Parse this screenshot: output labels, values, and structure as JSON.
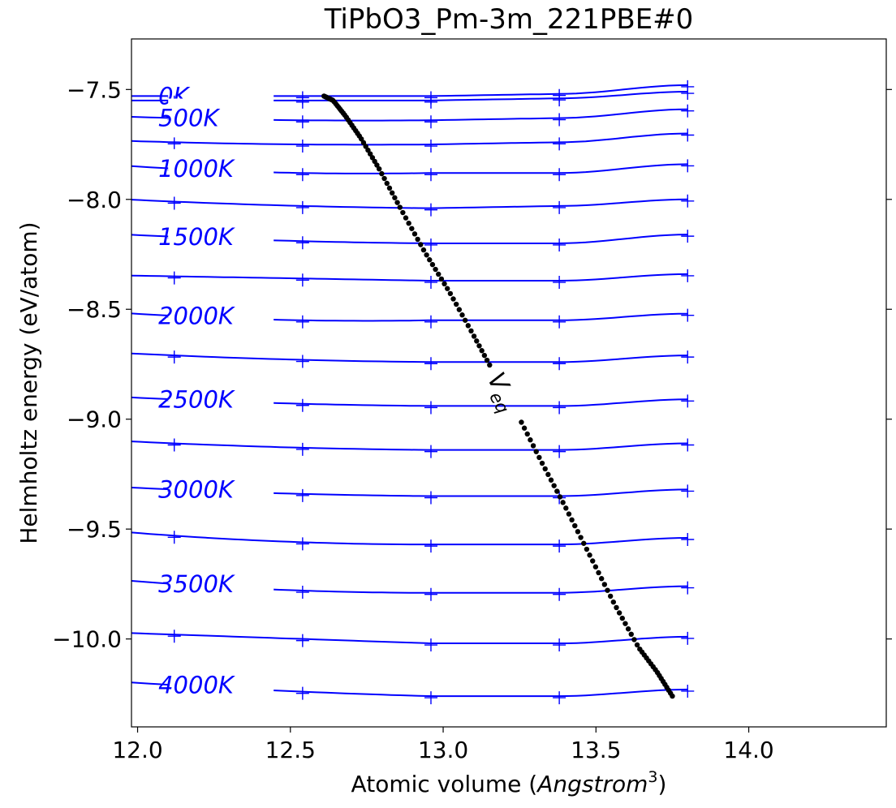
{
  "chart_data": {
    "type": "line",
    "title": "TiPbO3_Pm-3m_221PBE#0",
    "xlabel_main": "Atomic volume (",
    "xlabel_italic": "Angstrom",
    "xlabel_sup": "3",
    "xlabel_close": ")",
    "ylabel": "Helmholtz energy (eV/atom)",
    "xlim": [
      11.98,
      14.45
    ],
    "ylim": [
      -10.4,
      -7.27
    ],
    "xticks": [
      12.0,
      12.5,
      13.0,
      13.5,
      14.0
    ],
    "xtick_labels": [
      "12.0",
      "12.5",
      "13.0",
      "13.5",
      "14.0"
    ],
    "yticks": [
      -7.5,
      -8.0,
      -8.5,
      -9.0,
      -9.5,
      -10.0
    ],
    "ytick_labels": [
      "−7.5",
      "−8.0",
      "−8.5",
      "−9.0",
      "−9.5",
      "−10.0"
    ],
    "grid": false,
    "curve_color": "#0000ff",
    "veq_color": "#000000",
    "veq_label_main": "V",
    "veq_label_sub": "eq",
    "sample_volumes": [
      12.12,
      12.54,
      12.96,
      13.38,
      13.8
    ],
    "series": [
      {
        "T": 0,
        "label": "0K",
        "points": [
          -7.53,
          -7.53,
          -7.53,
          -7.52,
          -7.48
        ]
      },
      {
        "T": 250,
        "label": "",
        "points": [
          -7.55,
          -7.55,
          -7.55,
          -7.54,
          -7.51
        ]
      },
      {
        "T": 500,
        "label": "500K",
        "points": [
          -7.63,
          -7.64,
          -7.64,
          -7.63,
          -7.59
        ]
      },
      {
        "T": 750,
        "label": "",
        "points": [
          -7.74,
          -7.75,
          -7.75,
          -7.74,
          -7.7
        ]
      },
      {
        "T": 1000,
        "label": "1000K",
        "points": [
          -7.86,
          -7.88,
          -7.88,
          -7.88,
          -7.84
        ]
      },
      {
        "T": 1250,
        "label": "",
        "points": [
          -8.01,
          -8.03,
          -8.04,
          -8.03,
          -8.0
        ]
      },
      {
        "T": 1500,
        "label": "1500K",
        "points": [
          -8.17,
          -8.19,
          -8.2,
          -8.2,
          -8.16
        ]
      },
      {
        "T": 1750,
        "label": "",
        "points": [
          -8.35,
          -8.36,
          -8.37,
          -8.37,
          -8.34
        ]
      },
      {
        "T": 2000,
        "label": "2000K",
        "points": [
          -8.53,
          -8.55,
          -8.55,
          -8.55,
          -8.52
        ]
      },
      {
        "T": 2250,
        "label": "",
        "points": [
          -8.71,
          -8.73,
          -8.74,
          -8.74,
          -8.71
        ]
      },
      {
        "T": 2500,
        "label": "2500K",
        "points": [
          -8.91,
          -8.93,
          -8.94,
          -8.94,
          -8.91
        ]
      },
      {
        "T": 2750,
        "label": "",
        "points": [
          -9.11,
          -9.13,
          -9.14,
          -9.14,
          -9.11
        ]
      },
      {
        "T": 3000,
        "label": "3000K",
        "points": [
          -9.32,
          -9.34,
          -9.35,
          -9.35,
          -9.32
        ]
      },
      {
        "T": 3250,
        "label": "",
        "points": [
          -9.53,
          -9.56,
          -9.57,
          -9.57,
          -9.54
        ]
      },
      {
        "T": 3500,
        "label": "3500K",
        "points": [
          -9.75,
          -9.78,
          -9.79,
          -9.79,
          -9.76
        ]
      },
      {
        "T": 3750,
        "label": "",
        "points": [
          -9.98,
          -10.0,
          -10.02,
          -10.02,
          -9.99
        ]
      },
      {
        "T": 4000,
        "label": "4000K",
        "points": [
          -10.21,
          -10.24,
          -10.26,
          -10.26,
          -10.23
        ]
      }
    ],
    "veq": {
      "volumes": [
        12.61,
        12.64,
        12.68,
        12.73,
        12.79,
        12.86,
        12.94,
        13.02,
        13.1,
        13.17,
        13.24,
        13.32,
        13.4,
        13.48,
        13.56,
        13.64,
        13.7,
        13.75
      ],
      "energies": [
        -7.53,
        -7.55,
        -7.62,
        -7.72,
        -7.86,
        -8.04,
        -8.24,
        -8.42,
        -8.62,
        -8.8,
        -8.97,
        -9.19,
        -9.4,
        -9.62,
        -9.84,
        -10.04,
        -10.15,
        -10.26
      ]
    }
  }
}
